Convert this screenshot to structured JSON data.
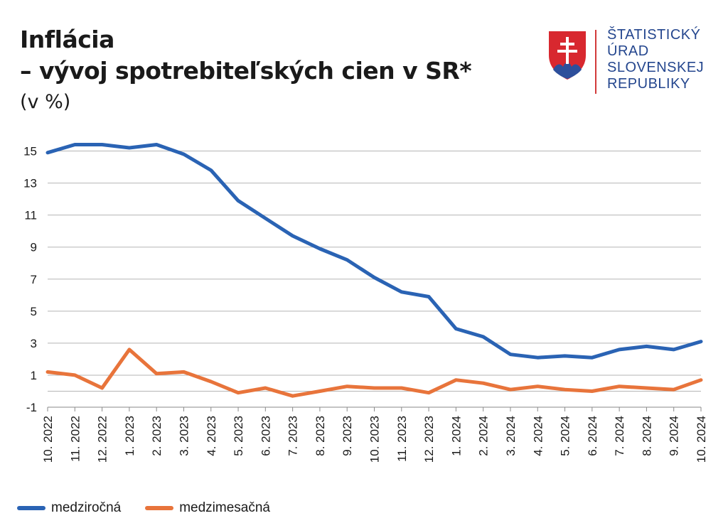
{
  "header": {
    "title_line1": "Inflácia",
    "title_line2": "– vývoj spotrebiteľských cien v SR*",
    "unit": "(v %)"
  },
  "logo": {
    "lines": [
      "ŠTATISTICKÝ",
      "ÚRAD",
      "SLOVENSKEJ",
      "REPUBLIKY"
    ]
  },
  "colors": {
    "series1": "#2a63b4",
    "series2": "#e8743b",
    "grid": "#b5b5b5",
    "axis": "#8a8a8a"
  },
  "chart_data": {
    "type": "line",
    "title": "Inflácia – vývoj spotrebiteľských cien v SR*",
    "ylabel": "(v %)",
    "xlabel": "",
    "ylim": [
      -1,
      16
    ],
    "yticks": [
      -1,
      1,
      3,
      5,
      7,
      9,
      11,
      13,
      15
    ],
    "grid": true,
    "legend_position": "bottom-left",
    "categories": [
      "10. 2022",
      "11. 2022",
      "12. 2022",
      "1. 2023",
      "2. 2023",
      "3. 2023",
      "4. 2023",
      "5. 2023",
      "6. 2023",
      "7. 2023",
      "8. 2023",
      "9. 2023",
      "10. 2023",
      "11. 2023",
      "12. 2023",
      "1. 2024",
      "2. 2024",
      "3. 2024",
      "4. 2024",
      "5. 2024",
      "6. 2024",
      "7. 2024",
      "8. 2024",
      "9. 2024",
      "10. 2024"
    ],
    "series": [
      {
        "name": "medziročná",
        "values": [
          14.9,
          15.4,
          15.4,
          15.2,
          15.4,
          14.8,
          13.8,
          11.9,
          10.8,
          9.7,
          8.9,
          8.2,
          7.1,
          6.2,
          5.9,
          3.9,
          3.4,
          2.3,
          2.1,
          2.2,
          2.1,
          2.6,
          2.8,
          2.6,
          3.1
        ]
      },
      {
        "name": "medzimesačná",
        "values": [
          1.2,
          1.0,
          0.2,
          2.6,
          1.1,
          1.2,
          0.6,
          -0.1,
          0.2,
          -0.3,
          0.0,
          0.3,
          0.2,
          0.2,
          -0.1,
          0.7,
          0.5,
          0.1,
          0.3,
          0.1,
          0.0,
          0.3,
          0.2,
          0.1,
          0.7
        ]
      }
    ]
  }
}
